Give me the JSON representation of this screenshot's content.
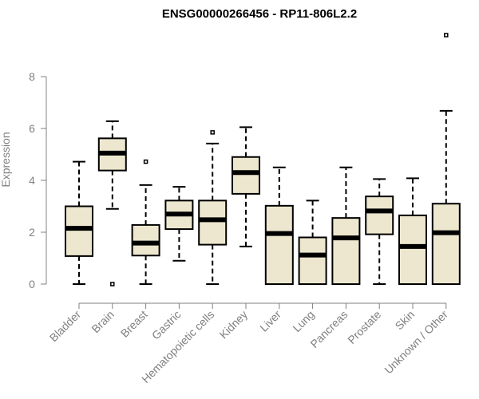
{
  "chart_data": {
    "type": "box",
    "title": "ENSG00000266456 - RP11-806L2.2",
    "ylabel": "Expression",
    "xlabel": "",
    "ylim": [
      0,
      9.5
    ],
    "yticks": [
      0,
      2,
      4,
      6,
      8
    ],
    "grid": false,
    "box_fill": "#ede7cf",
    "categories": [
      "Bladder",
      "Brain",
      "Breast",
      "Gastric",
      "Hematopoietic cells",
      "Kidney",
      "Liver",
      "Lung",
      "Pancreas",
      "Prostate",
      "Skin",
      "Unknown / Other"
    ],
    "boxes": [
      {
        "low": 0.0,
        "q1": 1.08,
        "median": 2.15,
        "q3": 3.0,
        "high": 4.72,
        "outliers": []
      },
      {
        "low": 2.9,
        "q1": 4.38,
        "median": 5.05,
        "q3": 5.62,
        "high": 6.28,
        "outliers": [
          0.0
        ]
      },
      {
        "low": 0.0,
        "q1": 1.1,
        "median": 1.58,
        "q3": 2.28,
        "high": 3.82,
        "outliers": [
          4.72
        ]
      },
      {
        "low": 0.9,
        "q1": 2.12,
        "median": 2.7,
        "q3": 3.22,
        "high": 3.75,
        "outliers": []
      },
      {
        "low": 0.0,
        "q1": 1.52,
        "median": 2.48,
        "q3": 3.22,
        "high": 5.42,
        "outliers": [
          5.85
        ]
      },
      {
        "low": 1.45,
        "q1": 3.48,
        "median": 4.3,
        "q3": 4.9,
        "high": 6.05,
        "outliers": []
      },
      {
        "low": 0.0,
        "q1": 0.0,
        "median": 1.95,
        "q3": 3.02,
        "high": 4.5,
        "outliers": []
      },
      {
        "low": 0.0,
        "q1": 0.0,
        "median": 1.12,
        "q3": 1.8,
        "high": 3.22,
        "outliers": []
      },
      {
        "low": 0.0,
        "q1": 0.0,
        "median": 1.78,
        "q3": 2.55,
        "high": 4.5,
        "outliers": []
      },
      {
        "low": 0.0,
        "q1": 1.92,
        "median": 2.82,
        "q3": 3.38,
        "high": 4.05,
        "outliers": []
      },
      {
        "low": 0.0,
        "q1": 0.0,
        "median": 1.45,
        "q3": 2.65,
        "high": 4.08,
        "outliers": []
      },
      {
        "low": 0.0,
        "q1": 0.0,
        "median": 1.98,
        "q3": 3.1,
        "high": 6.68,
        "outliers": [
          9.6
        ]
      }
    ]
  }
}
